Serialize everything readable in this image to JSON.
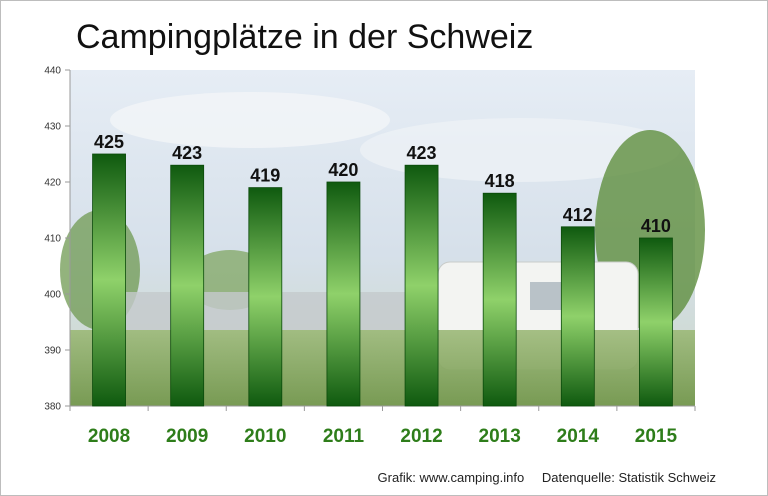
{
  "header": {
    "title": "Campingplätze in der Schweiz"
  },
  "footer": {
    "credit": "Grafik: www.camping.info",
    "source": "Datenquelle: Statistik Schweiz"
  },
  "colors": {
    "bar_dark": "#0f5a0f",
    "bar_light": "#8fd16a",
    "x_label": "#2e7d1a",
    "sky_top": "#cfd9e6",
    "grass": "#7fa35a"
  },
  "chart_data": {
    "type": "bar",
    "title": "Campingplätze in der Schweiz",
    "xlabel": "",
    "ylabel": "",
    "categories": [
      "2008",
      "2009",
      "2010",
      "2011",
      "2012",
      "2013",
      "2014",
      "2015"
    ],
    "values": [
      425,
      423,
      419,
      420,
      423,
      418,
      412,
      410
    ],
    "data_labels": [
      "425",
      "423",
      "419",
      "420",
      "423",
      "418",
      "412",
      "410"
    ],
    "ylim": [
      380,
      440
    ],
    "yticks": [
      380,
      390,
      400,
      410,
      420,
      430,
      440
    ],
    "grid": false,
    "legend": "none"
  }
}
